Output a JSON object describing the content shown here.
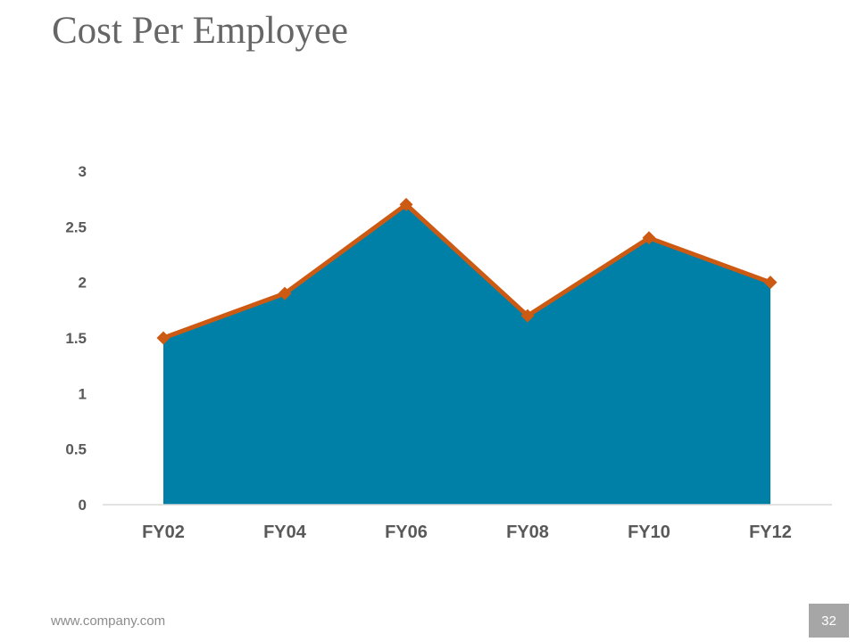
{
  "slide": {
    "title": "Cost Per Employee",
    "footer_url": "www.company.com",
    "page_number": "32"
  },
  "colors": {
    "area_fill": "#0080a6",
    "line": "#cc5a13",
    "marker": "#cc5a13",
    "axis": "#d9d9d9",
    "tick_text": "#595959"
  },
  "chart_data": {
    "type": "area",
    "title": "",
    "xlabel": "",
    "ylabel": "",
    "categories": [
      "FY02",
      "FY04",
      "FY06",
      "FY08",
      "FY10",
      "FY12"
    ],
    "values": [
      1.5,
      1.9,
      2.7,
      1.7,
      2.4,
      2.0
    ],
    "ylim": [
      0,
      3
    ],
    "yticks": [
      "0",
      "0.5",
      "1",
      "1.5",
      "2",
      "2.5",
      "3"
    ],
    "grid": false,
    "legend": "none",
    "line_overlay": true,
    "marker": "diamond"
  }
}
